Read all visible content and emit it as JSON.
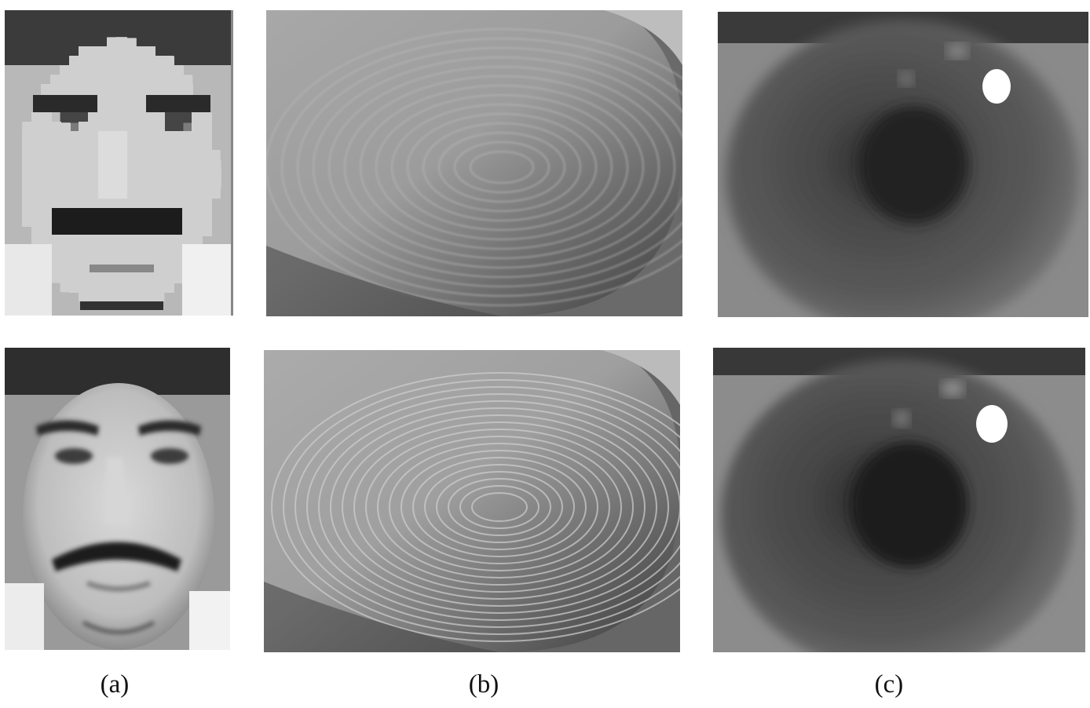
{
  "figure": {
    "columns": [
      {
        "id": "a",
        "caption": "(a)",
        "subject": "face-image"
      },
      {
        "id": "b",
        "caption": "(b)",
        "subject": "fingerprint-image"
      },
      {
        "id": "c",
        "caption": "(c)",
        "subject": "iris-image"
      }
    ],
    "rows": [
      "low-resolution",
      "high-resolution"
    ]
  },
  "colors": {
    "background": "#ffffff",
    "caption_text": "#111111"
  }
}
